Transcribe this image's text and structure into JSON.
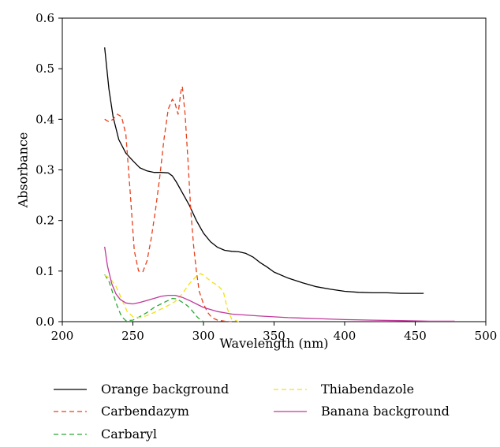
{
  "chart_data": {
    "type": "line",
    "title": "",
    "xlabel": "Wavelength (nm)",
    "ylabel": "Absorbance",
    "xlim": [
      200,
      500
    ],
    "ylim": [
      0,
      0.6
    ],
    "xticks": [
      "200",
      "250",
      "300",
      "350",
      "400",
      "450",
      "500"
    ],
    "yticks": [
      "0.0",
      "0.1",
      "0.2",
      "0.3",
      "0.4",
      "0.5",
      "0.6"
    ],
    "grid": false,
    "legend_position": "bottom",
    "series": [
      {
        "name": "Orange background",
        "color": "#000000",
        "dash": "solid",
        "x": [
          230,
          233,
          236,
          240,
          245,
          250,
          255,
          260,
          265,
          270,
          275,
          278,
          281,
          285,
          290,
          295,
          300,
          305,
          310,
          315,
          320,
          325,
          330,
          335,
          340,
          345,
          350,
          360,
          370,
          380,
          390,
          400,
          410,
          420,
          430,
          440,
          450,
          456
        ],
        "y": [
          0.542,
          0.46,
          0.405,
          0.36,
          0.333,
          0.318,
          0.304,
          0.298,
          0.295,
          0.295,
          0.294,
          0.288,
          0.275,
          0.255,
          0.23,
          0.2,
          0.175,
          0.158,
          0.147,
          0.141,
          0.139,
          0.138,
          0.135,
          0.128,
          0.117,
          0.108,
          0.098,
          0.086,
          0.077,
          0.069,
          0.064,
          0.06,
          0.058,
          0.057,
          0.057,
          0.056,
          0.056,
          0.056
        ]
      },
      {
        "name": "Carbendazym",
        "color": "#e8401c",
        "dash": "dashed",
        "x": [
          230,
          233,
          236,
          239,
          242,
          245,
          248,
          251,
          254,
          257,
          260,
          263,
          266,
          269,
          272,
          275,
          278,
          280,
          282,
          284,
          285,
          287,
          289,
          291,
          293,
          295,
          297,
          300,
          303,
          306,
          310,
          315,
          320
        ],
        "y": [
          0.4,
          0.395,
          0.4,
          0.41,
          0.405,
          0.37,
          0.26,
          0.14,
          0.1,
          0.098,
          0.12,
          0.165,
          0.22,
          0.285,
          0.36,
          0.42,
          0.44,
          0.43,
          0.41,
          0.455,
          0.465,
          0.41,
          0.32,
          0.22,
          0.15,
          0.1,
          0.06,
          0.035,
          0.018,
          0.008,
          0.003,
          0.001,
          0.0
        ]
      },
      {
        "name": "Carbaryl",
        "color": "#2aa836",
        "dash": "dashed",
        "x": [
          230,
          233,
          236,
          239,
          242,
          245,
          250,
          255,
          260,
          265,
          270,
          275,
          278,
          281,
          284,
          287,
          290,
          293,
          296,
          300
        ],
        "y": [
          0.093,
          0.08,
          0.055,
          0.03,
          0.01,
          0.002,
          0.003,
          0.01,
          0.018,
          0.028,
          0.035,
          0.042,
          0.046,
          0.045,
          0.04,
          0.035,
          0.028,
          0.018,
          0.008,
          0.0
        ]
      },
      {
        "name": "Thiabendazole",
        "color": "#f5e010",
        "dash": "dashed",
        "x": [
          230,
          234,
          238,
          242,
          246,
          250,
          255,
          260,
          265,
          270,
          275,
          280,
          285,
          290,
          295,
          298,
          300,
          303,
          306,
          310,
          314,
          317,
          320,
          325
        ],
        "y": [
          0.092,
          0.085,
          0.07,
          0.045,
          0.02,
          0.01,
          0.008,
          0.012,
          0.018,
          0.025,
          0.032,
          0.04,
          0.055,
          0.075,
          0.09,
          0.095,
          0.092,
          0.085,
          0.078,
          0.072,
          0.06,
          0.025,
          0.005,
          0.0
        ]
      },
      {
        "name": "Banana background",
        "color": "#c0399a",
        "dash": "solid",
        "x": [
          230,
          232,
          235,
          238,
          241,
          245,
          250,
          255,
          260,
          265,
          270,
          275,
          280,
          285,
          290,
          295,
          300,
          310,
          320,
          340,
          360,
          380,
          400,
          420,
          440,
          460,
          478
        ],
        "y": [
          0.148,
          0.11,
          0.075,
          0.055,
          0.044,
          0.037,
          0.035,
          0.038,
          0.042,
          0.046,
          0.05,
          0.052,
          0.052,
          0.048,
          0.042,
          0.035,
          0.028,
          0.02,
          0.015,
          0.011,
          0.008,
          0.006,
          0.004,
          0.003,
          0.002,
          0.001,
          0.001
        ]
      }
    ]
  }
}
